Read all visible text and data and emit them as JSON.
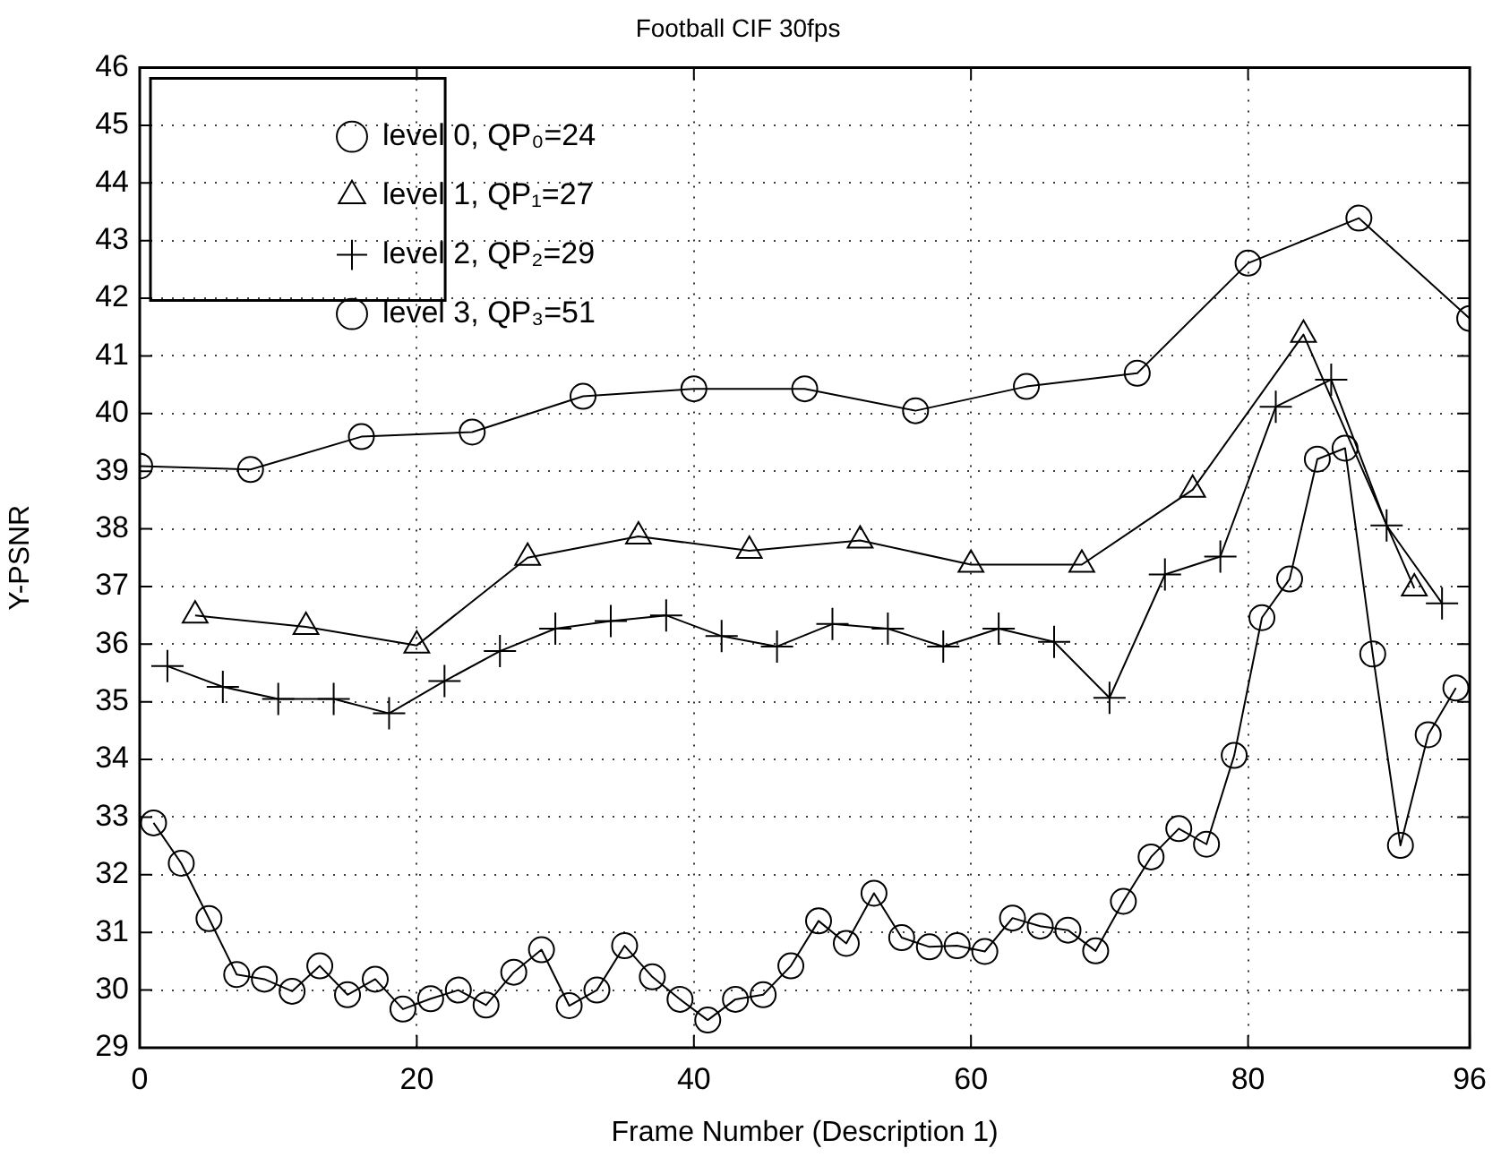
{
  "chart_data": {
    "type": "line",
    "title": "Football CIF 30fps",
    "xlabel": "Frame Number (Description 1)",
    "ylabel": "Y-PSNR",
    "xlim": [
      0,
      96
    ],
    "xticks": [
      0,
      20,
      40,
      60,
      80,
      96
    ],
    "ylim": [
      29,
      46
    ],
    "yticks": [
      29,
      30,
      31,
      32,
      33,
      34,
      35,
      36,
      37,
      38,
      39,
      40,
      41,
      42,
      43,
      44,
      45,
      46
    ],
    "grid": true,
    "legend": "top left",
    "line_style": "solid",
    "series": [
      {
        "name": "level 0, QP₀=24",
        "color": "#000000",
        "marker": "circle",
        "x": [
          0,
          8,
          16,
          24,
          32,
          40,
          48,
          56,
          64,
          72,
          80,
          88,
          96
        ],
        "values": [
          39.09,
          39.03,
          39.6,
          39.68,
          40.3,
          40.43,
          40.43,
          40.05,
          40.47,
          40.7,
          42.61,
          43.39,
          41.65
        ]
      },
      {
        "name": "level 1, QP₁=27",
        "color": "#000000",
        "marker": "triangle",
        "x": [
          4,
          12,
          20,
          28,
          36,
          44,
          52,
          60,
          68,
          76,
          84,
          92
        ],
        "values": [
          36.5,
          36.3,
          35.98,
          37.5,
          37.87,
          37.62,
          37.8,
          37.38,
          37.38,
          38.68,
          41.37,
          36.97
        ]
      },
      {
        "name": "level 2, QP₂=29",
        "color": "#000000",
        "marker": "cross",
        "x": [
          2,
          6,
          10,
          14,
          18,
          22,
          26,
          30,
          34,
          38,
          42,
          46,
          50,
          54,
          58,
          62,
          66,
          70,
          74,
          78,
          82,
          86,
          90,
          94
        ],
        "values": [
          35.62,
          35.26,
          35.05,
          35.05,
          34.8,
          35.36,
          35.88,
          36.27,
          36.4,
          36.5,
          36.14,
          35.96,
          36.35,
          36.27,
          35.96,
          36.27,
          36.04,
          35.07,
          37.21,
          37.52,
          40.12,
          40.59,
          38.06,
          36.71
        ]
      },
      {
        "name": "level 3, QP₃=51",
        "color": "#000000",
        "marker": "circle",
        "x": [
          1,
          3,
          5,
          7,
          9,
          11,
          13,
          15,
          17,
          19,
          21,
          23,
          25,
          27,
          29,
          31,
          33,
          35,
          37,
          39,
          41,
          43,
          45,
          47,
          49,
          51,
          53,
          55,
          57,
          59,
          61,
          63,
          65,
          67,
          69,
          71,
          73,
          75,
          77,
          79,
          81,
          83,
          85,
          87,
          89,
          91,
          93,
          95
        ],
        "values": [
          32.9,
          32.2,
          31.24,
          30.27,
          30.19,
          29.98,
          30.42,
          29.92,
          30.19,
          29.67,
          29.85,
          30.0,
          29.74,
          30.31,
          30.7,
          29.73,
          30.0,
          30.77,
          30.23,
          29.84,
          29.48,
          29.84,
          29.92,
          30.42,
          31.2,
          30.81,
          31.68,
          30.91,
          30.75,
          30.77,
          30.67,
          31.25,
          31.11,
          31.04,
          30.68,
          31.54,
          32.31,
          32.8,
          32.53,
          34.07,
          36.46,
          37.13,
          39.21,
          39.4,
          35.83,
          32.51,
          34.43,
          35.24
        ]
      }
    ]
  }
}
